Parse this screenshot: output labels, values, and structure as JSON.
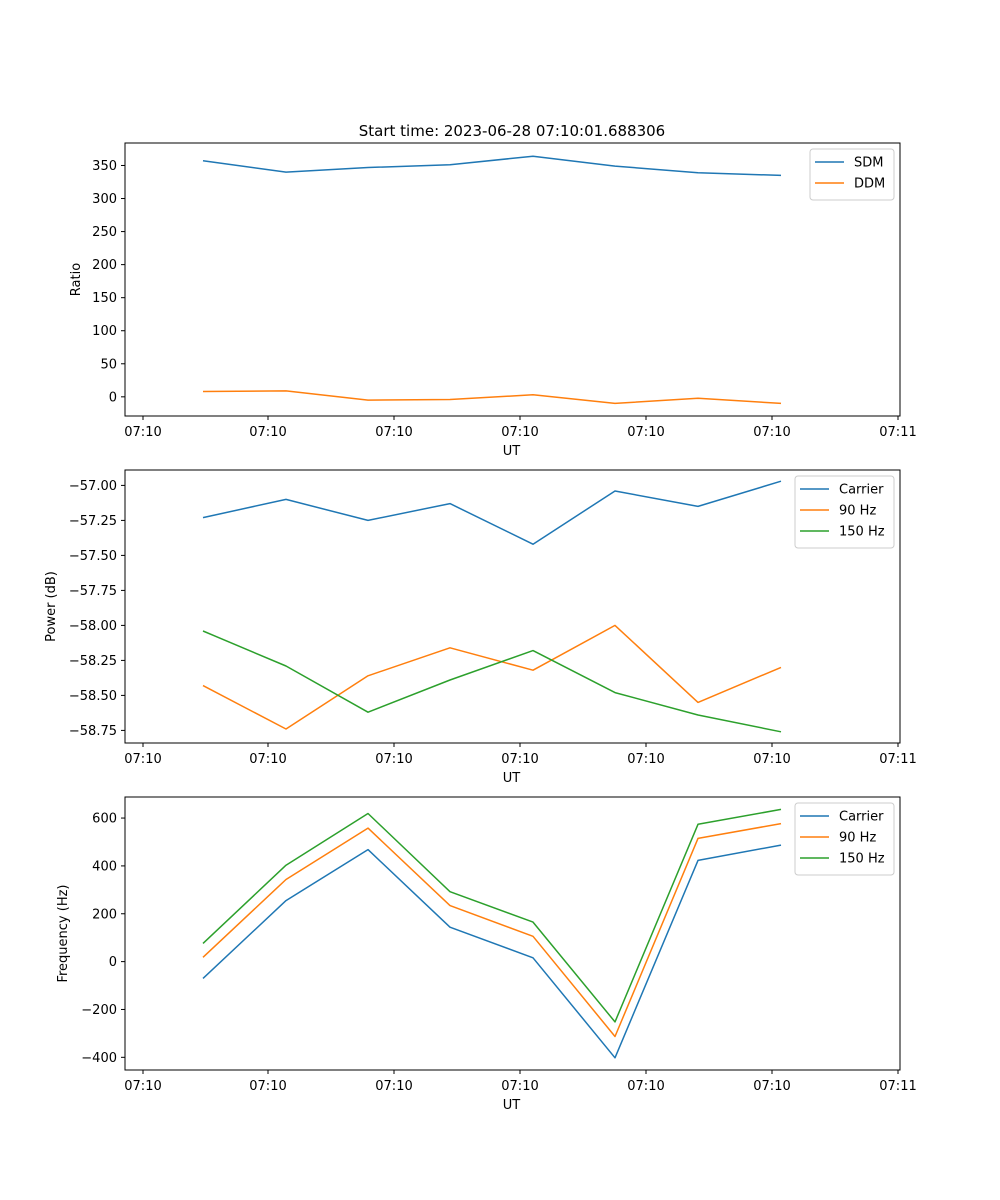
{
  "title": "Start time: 2023-06-28 07:10:01.688306",
  "colors": {
    "blue": "#1f77b4",
    "orange": "#ff7f0e",
    "green": "#2ca02c"
  },
  "chart_data": [
    {
      "type": "line",
      "xlabel": "UT",
      "ylabel": "Ratio",
      "x_tick_labels": [
        "07:10",
        "07:10",
        "07:10",
        "07:10",
        "07:10",
        "07:10",
        "07:11"
      ],
      "yticks": [
        0,
        50,
        100,
        150,
        200,
        250,
        300,
        350
      ],
      "ylim": [
        -29,
        384
      ],
      "legend_position": "top-right",
      "series": [
        {
          "name": "SDM",
          "color": "#1f77b4",
          "values": [
            357,
            340,
            347,
            351,
            364,
            349,
            339,
            335
          ]
        },
        {
          "name": "DDM",
          "color": "#ff7f0e",
          "values": [
            8,
            9,
            -5,
            -4,
            3,
            -10,
            -2,
            -10
          ]
        }
      ]
    },
    {
      "type": "line",
      "xlabel": "UT",
      "ylabel": "Power (dB)",
      "x_tick_labels": [
        "07:10",
        "07:10",
        "07:10",
        "07:10",
        "07:10",
        "07:10",
        "07:11"
      ],
      "yticks": [
        -58.75,
        -58.5,
        -58.25,
        -58.0,
        -57.75,
        -57.5,
        -57.25,
        -57.0
      ],
      "ytick_labels": [
        "−58.75",
        "−58.50",
        "−58.25",
        "−58.00",
        "−57.75",
        "−57.50",
        "−57.25",
        "−57.00"
      ],
      "ylim": [
        -58.84,
        -56.89
      ],
      "legend_position": "top-right",
      "series": [
        {
          "name": "Carrier",
          "color": "#1f77b4",
          "values": [
            -57.23,
            -57.1,
            -57.25,
            -57.13,
            -57.42,
            -57.04,
            -57.15,
            -56.97
          ]
        },
        {
          "name": "90 Hz",
          "color": "#ff7f0e",
          "values": [
            -58.43,
            -58.74,
            -58.36,
            -58.16,
            -58.32,
            -58.0,
            -58.55,
            -58.3
          ]
        },
        {
          "name": "150 Hz",
          "color": "#2ca02c",
          "values": [
            -58.04,
            -58.29,
            -58.62,
            -58.39,
            -58.18,
            -58.48,
            -58.64,
            -58.76
          ]
        }
      ]
    },
    {
      "type": "line",
      "xlabel": "UT",
      "ylabel": "Frequency (Hz)",
      "x_tick_labels": [
        "07:10",
        "07:10",
        "07:10",
        "07:10",
        "07:10",
        "07:10",
        "07:11"
      ],
      "yticks": [
        -400,
        -200,
        0,
        200,
        400,
        600
      ],
      "ytick_labels": [
        "−400",
        "−200",
        "0",
        "200",
        "400",
        "600"
      ],
      "ylim": [
        -453,
        688
      ],
      "legend_position": "top-right",
      "series": [
        {
          "name": "Carrier",
          "color": "#1f77b4",
          "values": [
            -70,
            255,
            468,
            144,
            16,
            -402,
            423,
            487
          ]
        },
        {
          "name": "90 Hz",
          "color": "#ff7f0e",
          "values": [
            18,
            343,
            558,
            234,
            106,
            -313,
            515,
            577
          ]
        },
        {
          "name": "150 Hz",
          "color": "#2ca02c",
          "values": [
            76,
            403,
            619,
            292,
            165,
            -252,
            574,
            636
          ]
        }
      ]
    }
  ]
}
